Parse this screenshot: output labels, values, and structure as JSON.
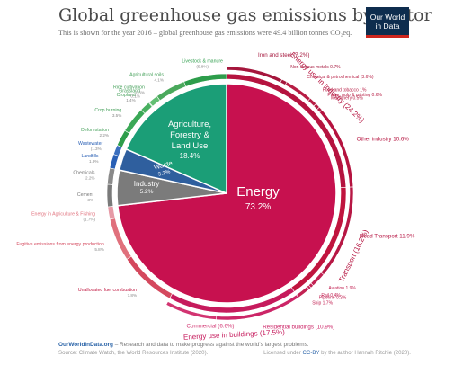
{
  "header": {
    "title": "Global greenhouse gas emissions by sector",
    "subtitle": "This is shown for the year 2016 – global greenhouse gas emissions were 49.4 billion tonnes CO₂eq.",
    "logo_line1": "Our World",
    "logo_line2": "in Data"
  },
  "footer": {
    "site": "OurWorldinData.org",
    "tagline": " – Research and data to make progress against the world’s largest problems.",
    "source": "Source: Climate Watch, the World Resources Institute (2020).",
    "license_prefix": "Licensed under ",
    "license_cc": "CC-BY",
    "license_suffix": " by the author Hannah Ritchie (2020)."
  },
  "colors": {
    "energy": "#c7114f",
    "agriculture": "#1b9e77",
    "waste": "#2f5f9e",
    "industry": "#7b7b7b"
  },
  "chart_data": {
    "type": "pie",
    "year": "2016",
    "total": "49.4 billion tonnes CO₂eq",
    "inner": [
      {
        "name": "Energy",
        "value": 73.2,
        "label": "73.2%"
      },
      {
        "name": "Industry",
        "value": 5.2,
        "label": "5.2%"
      },
      {
        "name": "Waste",
        "value": 3.2,
        "label": "3.2%"
      },
      {
        "name": "Agriculture, Forestry & Land Use",
        "value": 18.4,
        "label": "18.4%"
      }
    ],
    "middle": [
      {
        "name": "Energy use in Industry",
        "value": 24.2,
        "label": "(24.2%)"
      },
      {
        "name": "Transport",
        "value": 16.2,
        "label": "(16.2%)"
      },
      {
        "name": "Energy use in buildings",
        "value": 17.5,
        "label": "(17.5%)"
      },
      {
        "name": "Unallocated fuel combustion",
        "value": 7.8,
        "label": "7.8%"
      },
      {
        "name": "Fugitive emissions from energy production",
        "value": 5.8,
        "label": "5.8%"
      },
      {
        "name": "Energy in Agriculture & Fishing",
        "value": 1.7,
        "label": "(1.7%)"
      },
      {
        "name": "Cement",
        "value": 3.0,
        "label": "3%"
      },
      {
        "name": "Chemicals",
        "value": 2.2,
        "label": "2.2%"
      },
      {
        "name": "Landfills",
        "value": 1.9,
        "label": "1.9%"
      },
      {
        "name": "Wastewater",
        "value": 1.3,
        "label": "(1.3%)"
      },
      {
        "name": "Deforestation",
        "value": 2.2,
        "label": "2.2%"
      },
      {
        "name": "Crop burning",
        "value": 3.5,
        "label": "3.5%"
      },
      {
        "name": "Cropland",
        "value": 1.4,
        "label": "1.4%"
      },
      {
        "name": "Grassland",
        "value": 0.1,
        "label": "0.1%"
      },
      {
        "name": "Rice cultivation",
        "value": 1.3,
        "label": "1.3%"
      },
      {
        "name": "Agricultural soils",
        "value": 4.1,
        "label": "4.1%"
      },
      {
        "name": "Livestock & manure",
        "value": 5.8,
        "label": "(5.8%)"
      }
    ],
    "outer": [
      {
        "name": "Iron and steel",
        "value": 7.2,
        "label": "(7.2%)"
      },
      {
        "name": "Non-ferrous metals",
        "value": 0.7,
        "label": "0.7%"
      },
      {
        "name": "Chemical & petrochemical",
        "value": 3.6,
        "label": "(3.6%)"
      },
      {
        "name": "Food and tobacco",
        "value": 1.0,
        "label": "1%"
      },
      {
        "name": "Paper, pulp & printing",
        "value": 0.6,
        "label": "0.6%"
      },
      {
        "name": "Machinery",
        "value": 0.5,
        "label": "0.5%"
      },
      {
        "name": "Other industry",
        "value": 10.6,
        "label": "10.6%"
      },
      {
        "name": "Road Transport",
        "value": 11.9,
        "label": "11.9%"
      },
      {
        "name": "Aviation",
        "value": 1.9,
        "label": "1.9%"
      },
      {
        "name": "Rail",
        "value": 0.4,
        "label": "0.4%"
      },
      {
        "name": "Pipeline",
        "value": 0.3,
        "label": "0.3%"
      },
      {
        "name": "Ship",
        "value": 1.7,
        "label": "1.7%"
      },
      {
        "name": "Residential buildings",
        "value": 10.9,
        "label": "(10.9%)"
      },
      {
        "name": "Commercial",
        "value": 6.6,
        "label": "(6.6%)"
      }
    ]
  }
}
